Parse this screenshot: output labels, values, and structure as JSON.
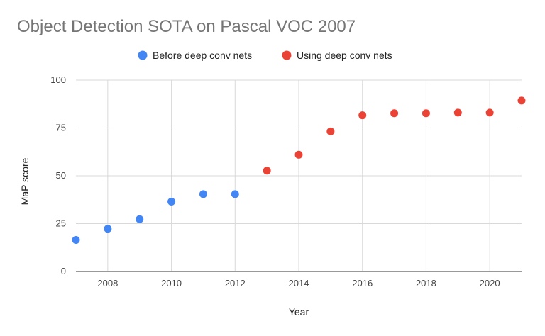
{
  "chart_data": {
    "type": "scatter",
    "title": "Object Detection SOTA on Pascal VOC 2007",
    "xlabel": "Year",
    "ylabel": "MaP score",
    "xlim": [
      2007,
      2021
    ],
    "ylim": [
      0,
      100
    ],
    "x_ticks": [
      2008,
      2010,
      2012,
      2014,
      2016,
      2018,
      2020
    ],
    "y_ticks": [
      0,
      25,
      50,
      75,
      100
    ],
    "grid": true,
    "legend_position": "top",
    "series": [
      {
        "name": "Before deep conv nets",
        "color": "#4285F4",
        "points": [
          {
            "x": 2007,
            "y": 16.5
          },
          {
            "x": 2008,
            "y": 22.3
          },
          {
            "x": 2009,
            "y": 27.3
          },
          {
            "x": 2010,
            "y": 36.5
          },
          {
            "x": 2011,
            "y": 40.4
          },
          {
            "x": 2012,
            "y": 40.4
          }
        ]
      },
      {
        "name": "Using deep conv nets",
        "color": "#EA4335",
        "points": [
          {
            "x": 2013,
            "y": 52.7
          },
          {
            "x": 2014,
            "y": 61.0
          },
          {
            "x": 2015,
            "y": 73.2
          },
          {
            "x": 2016,
            "y": 81.6
          },
          {
            "x": 2017,
            "y": 82.7
          },
          {
            "x": 2018,
            "y": 82.7
          },
          {
            "x": 2019,
            "y": 83.0
          },
          {
            "x": 2020,
            "y": 83.0
          },
          {
            "x": 2021,
            "y": 89.3
          }
        ]
      }
    ]
  }
}
